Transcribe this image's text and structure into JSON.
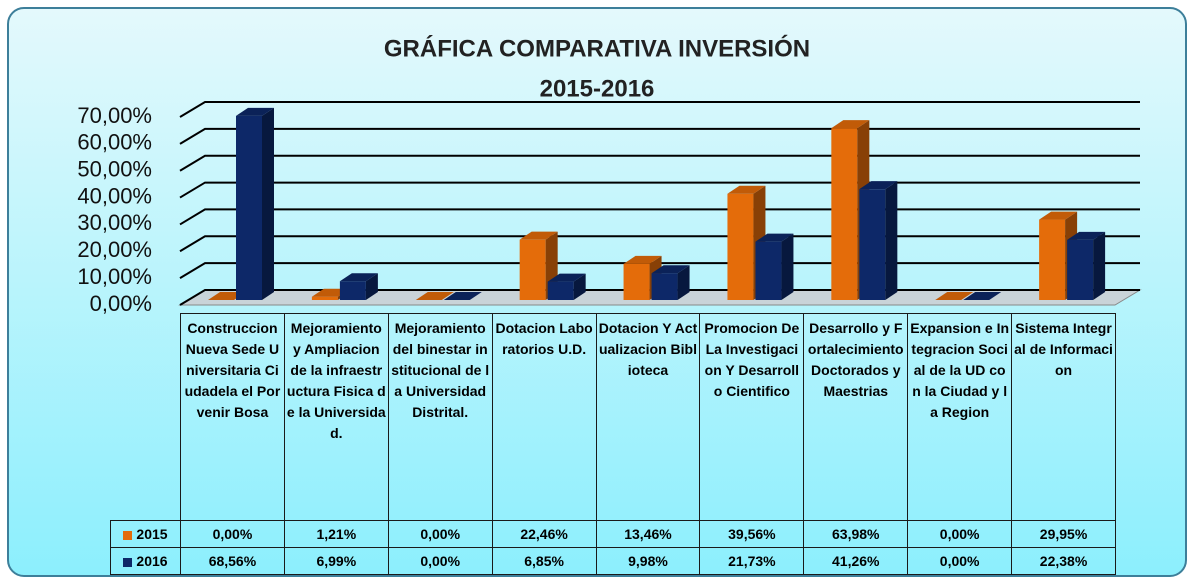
{
  "chart_data": {
    "type": "bar3d",
    "title": "GRÁFICA COMPARATIVA INVERSIÓN",
    "subtitle": "2015-2016",
    "categories": [
      "Construccion Nueva Sede Universitaria Ciudadela el Porvenir Bosa",
      "Mejoramiento y Ampliacion de la infraestructura Fisica de la Universidad.",
      "Mejoramiento del binestar institucional de la Universidad Distrital.",
      "Dotacion Laboratorios U.D.",
      "Dotacion Y Actualizacion Biblioteca",
      "Promocion De La Investigacion Y Desarrollo Cientifico",
      "Desarrollo y Fortalecimiento Doctorados y Maestrias",
      "Expansion e Integracion Social de la UD con la Ciudad y la Region",
      "Sistema Integral de Informacion"
    ],
    "series": [
      {
        "name": "2015",
        "color": "#e46c0a",
        "values": [
          0,
          1.21,
          0,
          22.46,
          13.46,
          39.56,
          63.98,
          0,
          29.95
        ],
        "value_labels": [
          "0,00%",
          "1,21%",
          "0,00%",
          "22,46%",
          "13,46%",
          "39,56%",
          "63,98%",
          "0,00%",
          "29,95%"
        ]
      },
      {
        "name": "2016",
        "color": "#0d2868",
        "values": [
          68.56,
          6.99,
          0,
          6.85,
          9.98,
          21.73,
          41.26,
          0,
          22.38
        ],
        "value_labels": [
          "68,56%",
          "6,99%",
          "0,00%",
          "6,85%",
          "9,98%",
          "21,73%",
          "41,26%",
          "0,00%",
          "22,38%"
        ]
      }
    ],
    "ylim": [
      0,
      70
    ],
    "yticks": [
      {
        "value": 0,
        "label": "0,00%"
      },
      {
        "value": 10,
        "label": "10,00%"
      },
      {
        "value": 20,
        "label": "20,00%"
      },
      {
        "value": 30,
        "label": "30,00%"
      },
      {
        "value": 40,
        "label": "40,00%"
      },
      {
        "value": 50,
        "label": "50,00%"
      },
      {
        "value": 60,
        "label": "60,00%"
      },
      {
        "value": 70,
        "label": "70,00%"
      }
    ],
    "grid": true
  }
}
